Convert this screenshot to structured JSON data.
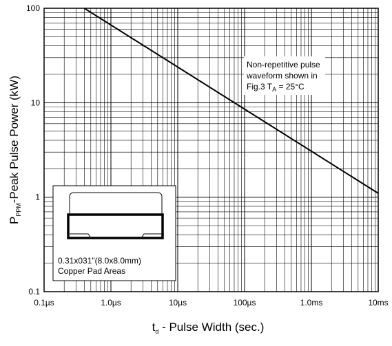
{
  "chart_data": {
    "type": "line",
    "x_scale": "log",
    "y_scale": "log",
    "xlabel": {
      "main": "t",
      "sub": "d",
      "rest": " - Pulse Width (sec.)"
    },
    "ylabel": {
      "main": "P",
      "sub": "PPM",
      "rest": "-Peak Pulse Power (kW)"
    },
    "xlim": [
      "0.1µs",
      "10ms"
    ],
    "ylim": [
      0.1,
      100
    ],
    "x_ticks": [
      {
        "label": "0.1µs",
        "decade": 0
      },
      {
        "label": "1.0µs",
        "decade": 1
      },
      {
        "label": "10µs",
        "decade": 2
      },
      {
        "label": "100µs",
        "decade": 3
      },
      {
        "label": "1.0ms",
        "decade": 4
      },
      {
        "label": "10ms",
        "decade": 5
      }
    ],
    "y_ticks": [
      {
        "label": "0.1",
        "value": 0.1
      },
      {
        "label": "1",
        "value": 1
      },
      {
        "label": "10",
        "value": 10
      },
      {
        "label": "100",
        "value": 100
      }
    ],
    "grid": true,
    "series": [
      {
        "points": [
          {
            "x": "0.4µs",
            "y": 100
          },
          {
            "x": "10ms",
            "y": 1.1
          }
        ]
      }
    ],
    "annotations": {
      "conditions": {
        "line1": "Non-repetitive pulse",
        "line2": "waveform shown in",
        "line3_pre": "Fig.3 T",
        "line3_sub": "A",
        "line3_post": " = 25°C"
      },
      "package": {
        "line1": "0.31x031\"(8.0x8.0mm)",
        "line2": "Copper Pad Areas"
      }
    }
  }
}
